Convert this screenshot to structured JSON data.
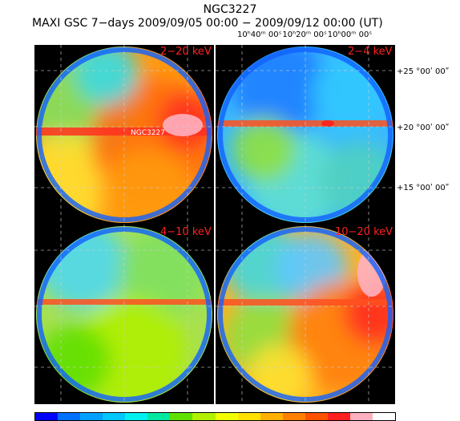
{
  "header": {
    "title": "NGC3227",
    "subtitle": "MAXI GSC 7−days 2009/09/05 00:00 − 2009/09/12 00:00 (UT)"
  },
  "axes": {
    "ra_labels": [
      "10ʰ40ᵐ 00ˢ",
      "10ʰ20ᵐ 00ˢ",
      "10ʰ00ᵐ 00ˢ"
    ],
    "dec_labels": [
      "+25 °00ʹ 00ʺ",
      "+20 °00ʹ 00ʺ",
      "+15 °00ʹ 00ʺ"
    ]
  },
  "panels": [
    {
      "band": "2−20 keV",
      "base": "#ff9a10",
      "source_label": "NGC3227"
    },
    {
      "band": "2−4 keV",
      "base": "#3ab8ff"
    },
    {
      "band": "4−10 keV",
      "base": "#a8e050"
    },
    {
      "band": "10−20 keV",
      "base": "#ffb020"
    }
  ],
  "colorbar": {
    "colors": [
      "#0000ff",
      "#0070ff",
      "#00a0ff",
      "#00c8ff",
      "#00f0f0",
      "#00e8a0",
      "#60e000",
      "#b0f000",
      "#f0ff00",
      "#ffe000",
      "#ffb000",
      "#ff8000",
      "#ff5000",
      "#ff2020",
      "#ffb0c0",
      "#ffffff"
    ]
  }
}
